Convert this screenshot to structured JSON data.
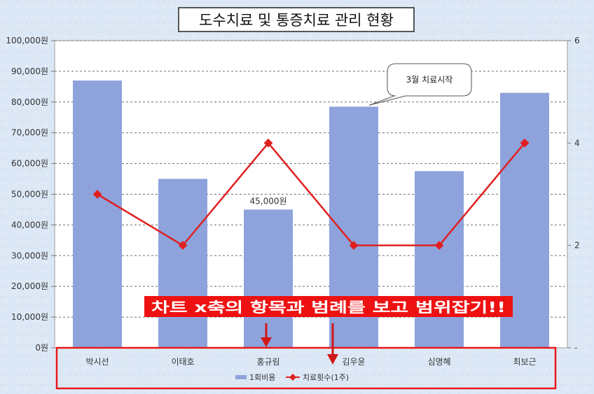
{
  "chart_data": {
    "type": "bar",
    "title": "도수치료 및 통증치료 관리 현황",
    "categories": [
      "박시선",
      "이태호",
      "홍규림",
      "김우윤",
      "심명혜",
      "최보근"
    ],
    "series": [
      {
        "name": "1회비용",
        "type": "bar",
        "axis": "left",
        "values": [
          87000,
          55000,
          45000,
          78500,
          57500,
          83000
        ]
      },
      {
        "name": "치료횟수(1주)",
        "type": "line",
        "axis": "right",
        "values": [
          3,
          2,
          4,
          2,
          2,
          4
        ]
      }
    ],
    "y_left": {
      "min": 0,
      "max": 100000,
      "step": 10000,
      "tick_labels": [
        "0원",
        "10,000원",
        "20,000원",
        "30,000원",
        "40,000원",
        "50,000원",
        "60,000원",
        "70,000원",
        "80,000원",
        "90,000원",
        "100,000원"
      ]
    },
    "y_right": {
      "min": 0,
      "max": 6,
      "tick_labels": [
        {
          "value": 0,
          "label": "-"
        },
        {
          "value": 2,
          "label": "2"
        },
        {
          "value": 4,
          "label": "4"
        },
        {
          "value": 6,
          "label": "6"
        }
      ]
    },
    "data_labels": [
      {
        "category": "홍규림",
        "text": "45,000원"
      }
    ],
    "callout": {
      "text": "3월 치료시작",
      "category": "김우윤"
    },
    "annotation": {
      "text": "차트 x축의 항목과 범례를 보고 범위잡기!!"
    },
    "grid": true,
    "legend_position": "bottom",
    "colors": {
      "bar": "#8ea3dc",
      "line": "#e02020",
      "annotation_bg": "#ee1111",
      "annotation_border": "#e81a1a",
      "arrow": "#d01818"
    }
  }
}
